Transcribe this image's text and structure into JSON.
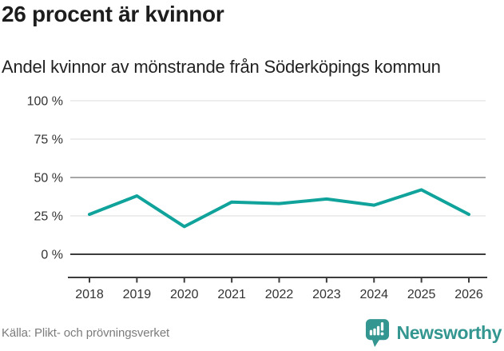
{
  "chart_data": {
    "type": "line",
    "title": "26 procent är kvinnor",
    "subtitle": "Andel kvinnor av mönstrande från Söderköpings kommun",
    "categories": [
      "2018",
      "2019",
      "2020",
      "2021",
      "2022",
      "2023",
      "2024",
      "2025",
      "2026"
    ],
    "values": [
      26,
      38,
      18,
      34,
      33,
      36,
      32,
      42,
      26
    ],
    "unit": "%",
    "xlabel": "",
    "ylabel": "",
    "ylim": [
      0,
      100
    ],
    "yticks": [
      100,
      75,
      50,
      25,
      0
    ],
    "ytick_labels": [
      "100 %",
      "75 %",
      "50 %",
      "25 %",
      "0 %"
    ],
    "grid": "on",
    "legend": "none",
    "line_color": "#10A39B",
    "emphasized_gridline_values": [
      50,
      0
    ]
  },
  "footer": {
    "source": "Källa: Plikt- och prövningsverket",
    "brand": "Newsworthy",
    "brand_color": "#349690"
  }
}
